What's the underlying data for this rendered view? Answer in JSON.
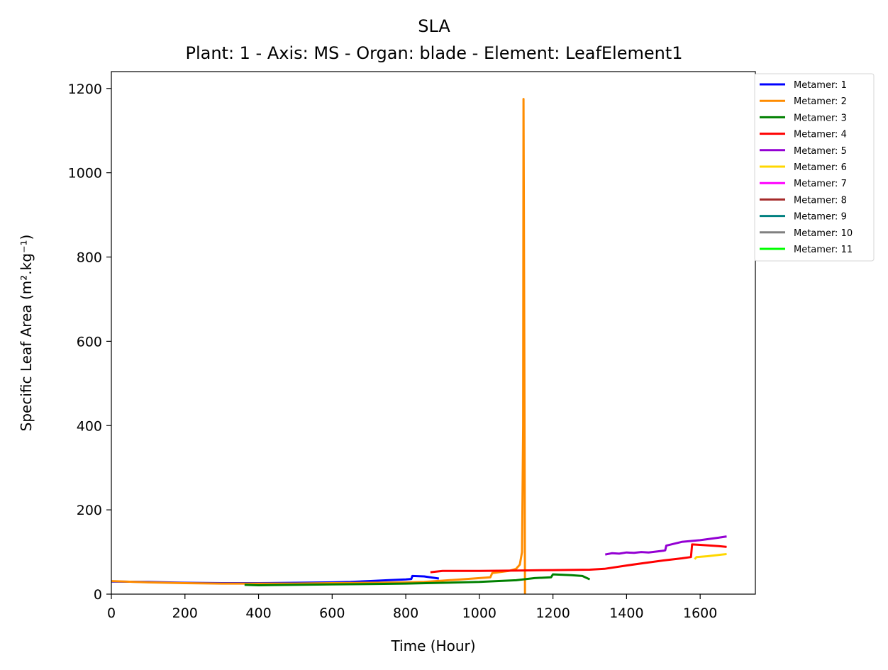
{
  "chart_data": {
    "type": "line",
    "title": "SLA",
    "subtitle": "Plant: 1 - Axis: MS - Organ: blade - Element: LeafElement1",
    "xlabel": "Time (Hour)",
    "ylabel": "Specific Leaf Area (m².kg⁻¹)",
    "xlim": [
      0,
      1750
    ],
    "ylim": [
      0,
      1240
    ],
    "xticks": [
      0,
      200,
      400,
      600,
      800,
      1000,
      1200,
      1400,
      1600
    ],
    "yticks": [
      0,
      200,
      400,
      600,
      800,
      1000,
      1200
    ],
    "grid": false,
    "legend_position": "outside-top-right",
    "series": [
      {
        "name": "Metamer: 1",
        "color": "#0000ff",
        "x": [
          0,
          100,
          200,
          300,
          400,
          500,
          600,
          650,
          700,
          750,
          800,
          815,
          818,
          850,
          890
        ],
        "y": [
          30,
          29,
          27,
          26,
          26,
          27,
          28,
          29,
          31,
          33,
          35,
          36,
          43,
          42,
          37
        ]
      },
      {
        "name": "Metamer: 2",
        "color": "#ff8c00",
        "x": [
          0,
          100,
          200,
          300,
          400,
          500,
          600,
          700,
          800,
          850,
          900,
          950,
          1000,
          1030,
          1035,
          1080,
          1100,
          1110,
          1116,
          1119,
          1120,
          1122,
          1124
        ],
        "y": [
          31,
          28,
          26,
          25,
          25,
          25,
          26,
          27,
          28,
          29,
          32,
          35,
          38,
          40,
          50,
          55,
          60,
          70,
          100,
          400,
          1175,
          600,
          0
        ]
      },
      {
        "name": "Metamer: 3",
        "color": "#008000",
        "x": [
          362,
          400,
          500,
          600,
          700,
          800,
          900,
          1000,
          1100,
          1150,
          1195,
          1200,
          1250,
          1280,
          1300
        ],
        "y": [
          22,
          21,
          22,
          23,
          24,
          25,
          27,
          29,
          33,
          38,
          40,
          47,
          45,
          43,
          35
        ]
      },
      {
        "name": "Metamer: 4",
        "color": "#ff0000",
        "x": [
          867,
          900,
          1000,
          1100,
          1200,
          1300,
          1340,
          1400,
          1450,
          1500,
          1550,
          1575,
          1578,
          1600,
          1650,
          1672
        ],
        "y": [
          52,
          55,
          55,
          56,
          57,
          58,
          60,
          68,
          74,
          80,
          85,
          88,
          118,
          117,
          114,
          112
        ]
      },
      {
        "name": "Metamer: 5",
        "color": "#9400d3",
        "x": [
          1342,
          1360,
          1380,
          1400,
          1420,
          1440,
          1460,
          1480,
          1500,
          1505,
          1508,
          1550,
          1600,
          1650,
          1672
        ],
        "y": [
          94,
          97,
          96,
          99,
          98,
          100,
          99,
          101,
          103,
          104,
          115,
          124,
          128,
          134,
          137
        ]
      },
      {
        "name": "Metamer: 6",
        "color": "#ffd700",
        "x": [
          1585,
          1590,
          1620,
          1650,
          1672
        ],
        "y": [
          83,
          88,
          90,
          93,
          95
        ]
      },
      {
        "name": "Metamer: 7",
        "color": "#ff00ff",
        "x": [],
        "y": []
      },
      {
        "name": "Metamer: 8",
        "color": "#a52a2a",
        "x": [],
        "y": []
      },
      {
        "name": "Metamer: 9",
        "color": "#008080",
        "x": [],
        "y": []
      },
      {
        "name": "Metamer: 10",
        "color": "#808080",
        "x": [],
        "y": []
      },
      {
        "name": "Metamer: 11",
        "color": "#00ff00",
        "x": [],
        "y": []
      }
    ]
  }
}
